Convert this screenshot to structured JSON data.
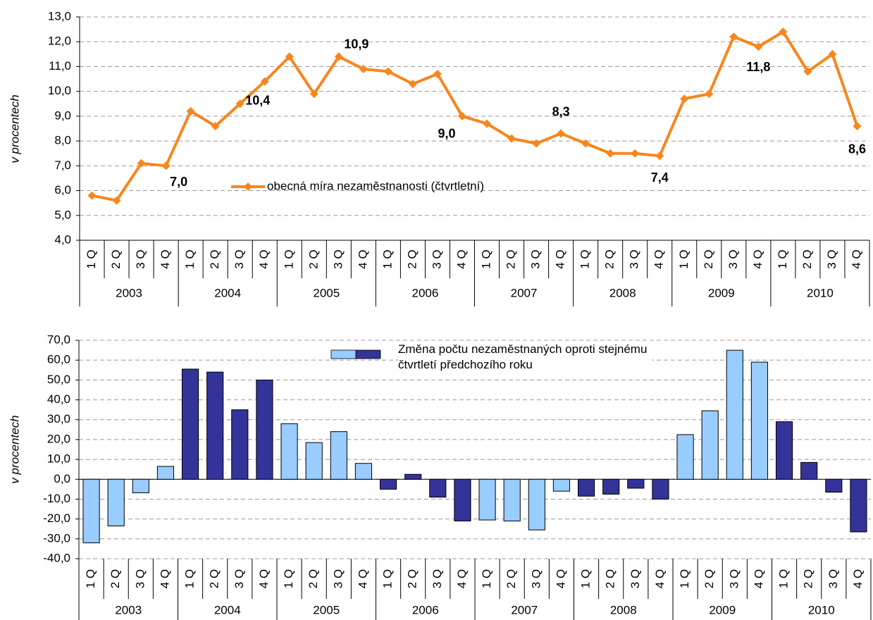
{
  "chart_data": [
    {
      "type": "line",
      "y_label": "v procentech",
      "categories": [
        "1 Q",
        "2 Q",
        "3 Q",
        "4 Q",
        "1 Q",
        "2 Q",
        "3 Q",
        "4 Q",
        "1 Q",
        "2 Q",
        "3 Q",
        "4 Q",
        "1 Q",
        "2 Q",
        "3 Q",
        "4 Q",
        "1 Q",
        "2 Q",
        "3 Q",
        "4 Q",
        "1 Q",
        "2 Q",
        "3 Q",
        "4 Q",
        "1 Q",
        "2 Q",
        "3 Q",
        "4 Q",
        "1 Q",
        "2 Q",
        "3 Q",
        "4 Q"
      ],
      "category_groups": [
        "2003",
        "2004",
        "2005",
        "2006",
        "2007",
        "2008",
        "2009",
        "2010"
      ],
      "series": [
        {
          "name": "obecná míra nezaměstnanosti (čtvrtletní)",
          "color": "#f7861c",
          "values": [
            5.8,
            5.6,
            7.1,
            7.0,
            9.2,
            8.6,
            9.5,
            10.4,
            11.4,
            9.9,
            11.4,
            10.9,
            10.8,
            10.3,
            10.7,
            9.0,
            8.7,
            8.1,
            7.9,
            8.3,
            7.9,
            7.5,
            7.5,
            7.4,
            9.7,
            9.9,
            12.2,
            11.8,
            12.4,
            10.8,
            11.5,
            8.6
          ],
          "value_labels": [
            null,
            null,
            null,
            "7,0",
            null,
            null,
            null,
            "10,4",
            null,
            null,
            null,
            "10,9",
            null,
            null,
            null,
            "9,0",
            null,
            null,
            null,
            "8,3",
            null,
            null,
            null,
            "7,4",
            null,
            null,
            null,
            "11,8",
            null,
            null,
            null,
            "8,6"
          ]
        }
      ],
      "ylim": [
        4,
        13
      ],
      "yticks": [
        {
          "value": 4,
          "label": "4,0"
        },
        {
          "value": 5,
          "label": "5,0"
        },
        {
          "value": 6,
          "label": "6,0"
        },
        {
          "value": 7,
          "label": "7,0"
        },
        {
          "value": 8,
          "label": "8,0"
        },
        {
          "value": 9,
          "label": "9,0"
        },
        {
          "value": 10,
          "label": "10,0"
        },
        {
          "value": 11,
          "label": "11,0"
        },
        {
          "value": 12,
          "label": "12,0"
        },
        {
          "value": 13,
          "label": "13,0"
        }
      ],
      "grid": true
    },
    {
      "type": "bar",
      "y_label": "v procentech",
      "categories": [
        "1 Q",
        "2 Q",
        "3 Q",
        "4 Q",
        "1 Q",
        "2 Q",
        "3 Q",
        "4 Q",
        "1 Q",
        "2 Q",
        "3 Q",
        "4 Q",
        "1 Q",
        "2 Q",
        "3 Q",
        "4 Q",
        "1 Q",
        "2 Q",
        "3 Q",
        "4 Q",
        "1 Q",
        "2 Q",
        "3 Q",
        "4 Q",
        "1 Q",
        "2 Q",
        "3 Q",
        "4 Q",
        "1 Q",
        "2 Q",
        "3 Q",
        "4 Q"
      ],
      "category_groups": [
        "2003",
        "2004",
        "2005",
        "2006",
        "2007",
        "2008",
        "2009",
        "2010"
      ],
      "series": [
        {
          "name": "Změna počtu nezaměstnaných oproti stejnému čtvrtletí předchozího roku",
          "colors": [
            "#99ccff",
            "#99ccff",
            "#99ccff",
            "#99ccff",
            "#333399",
            "#333399",
            "#333399",
            "#333399",
            "#99ccff",
            "#99ccff",
            "#99ccff",
            "#99ccff",
            "#333399",
            "#333399",
            "#333399",
            "#333399",
            "#99ccff",
            "#99ccff",
            "#99ccff",
            "#99ccff",
            "#333399",
            "#333399",
            "#333399",
            "#333399",
            "#99ccff",
            "#99ccff",
            "#99ccff",
            "#99ccff",
            "#333399",
            "#333399",
            "#333399",
            "#333399"
          ],
          "values": [
            -32,
            -23.5,
            -6.8,
            6.5,
            55.5,
            54,
            35,
            50,
            28,
            18.5,
            24,
            8,
            -5,
            2.5,
            -9,
            -21,
            -20.5,
            -21,
            -25.5,
            -6,
            -8.5,
            -7.5,
            -4.5,
            -10,
            22.5,
            34.5,
            65,
            59,
            29,
            8.5,
            -6.5,
            -26.5
          ]
        }
      ],
      "ylim": [
        -40,
        70
      ],
      "yticks": [
        {
          "value": -40,
          "label": "-40,0"
        },
        {
          "value": -30,
          "label": "-30,0"
        },
        {
          "value": -20,
          "label": "-20,0"
        },
        {
          "value": -10,
          "label": "-10,0"
        },
        {
          "value": 0,
          "label": "0,0"
        },
        {
          "value": 10,
          "label": "10,0"
        },
        {
          "value": 20,
          "label": "20,0"
        },
        {
          "value": 30,
          "label": "30,0"
        },
        {
          "value": 40,
          "label": "40,0"
        },
        {
          "value": 50,
          "label": "50,0"
        },
        {
          "value": 60,
          "label": "60,0"
        },
        {
          "value": 70,
          "label": "70,0"
        }
      ],
      "grid": true
    }
  ]
}
